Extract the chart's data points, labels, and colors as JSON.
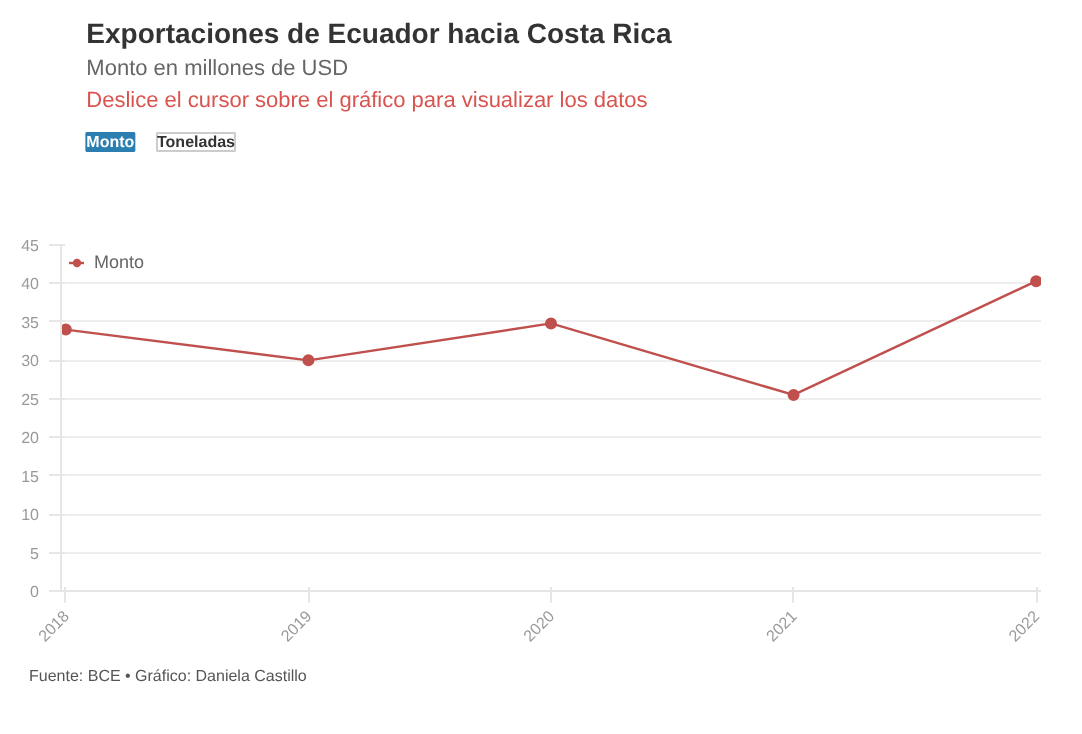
{
  "chart_data": {
    "type": "line",
    "title": "Exportaciones de Ecuador hacia Costa Rica",
    "subtitle": "Monto en millones de USD",
    "annotations": [
      "Deslice el cursor sobre el gráfico para visualizar los datos",
      "Monto",
      "Toneladas",
      "Fuente: BCE • Gráfico: Daniela Castillo"
    ],
    "categories": [
      "2018",
      "2019",
      "2020",
      "2021",
      "2022"
    ],
    "series": [
      {
        "name": "Monto",
        "color": "#c0504d",
        "values": [
          34.0,
          30.0,
          34.8,
          25.5,
          40.3
        ]
      }
    ],
    "ylim": [
      0,
      45
    ],
    "yticks": [
      0,
      5,
      10,
      15,
      20,
      25,
      30,
      35,
      40,
      45
    ],
    "grid": "y",
    "legend": "top left",
    "marker": "circle"
  }
}
